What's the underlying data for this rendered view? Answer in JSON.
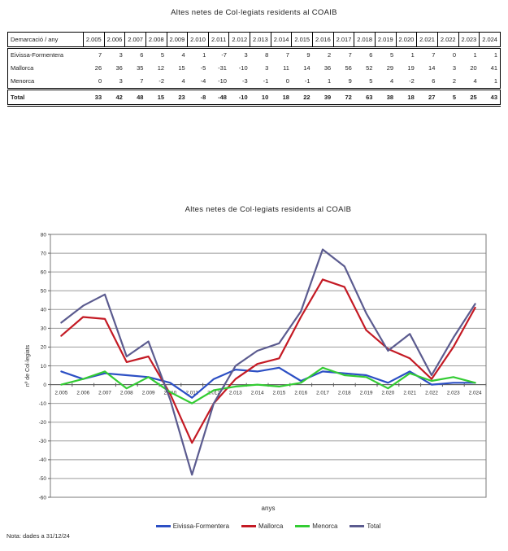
{
  "page": {
    "title": "Altes netes de Col·legiats residents al COAIB",
    "note": "Nota: dades a 31/12/24"
  },
  "table": {
    "header_label": "Demarcació / any",
    "years": [
      "2.005",
      "2.006",
      "2.007",
      "2.008",
      "2.009",
      "2.010",
      "2.011",
      "2.012",
      "2.013",
      "2.014",
      "2.015",
      "2.016",
      "2.017",
      "2.018",
      "2.019",
      "2.020",
      "2.021",
      "2.022",
      "2.023",
      "2.024"
    ],
    "rows": [
      {
        "label": "Eivissa-Formentera",
        "values": [
          7,
          3,
          6,
          5,
          4,
          1,
          -7,
          3,
          8,
          7,
          9,
          2,
          7,
          6,
          5,
          1,
          7,
          0,
          1,
          1
        ]
      },
      {
        "label": "Mallorca",
        "values": [
          26,
          36,
          35,
          12,
          15,
          -5,
          -31,
          -10,
          3,
          11,
          14,
          36,
          56,
          52,
          29,
          19,
          14,
          3,
          20,
          41
        ]
      },
      {
        "label": "Menorca",
        "values": [
          0,
          3,
          7,
          -2,
          4,
          -4,
          -10,
          -3,
          -1,
          0,
          -1,
          1,
          9,
          5,
          4,
          -2,
          6,
          2,
          4,
          1
        ]
      }
    ],
    "total_row": {
      "label": "Total",
      "values": [
        33,
        42,
        48,
        15,
        23,
        -8,
        -48,
        -10,
        10,
        18,
        22,
        39,
        72,
        63,
        38,
        18,
        27,
        5,
        25,
        43
      ]
    }
  },
  "chart_data": {
    "type": "line",
    "title": "Altes netes de Col·legiats residents al COAIB",
    "xlabel": "anys",
    "ylabel": "nº de Col·legiats",
    "categories": [
      "2.005",
      "2.006",
      "2.007",
      "2.008",
      "2.009",
      "2.010",
      "2.011",
      "2.012",
      "2.013",
      "2.014",
      "2.015",
      "2.016",
      "2.017",
      "2.018",
      "2.019",
      "2.020",
      "2.021",
      "2.022",
      "2.023",
      "2.024"
    ],
    "series": [
      {
        "name": "Eivissa-Formentera",
        "color": "#2C4FC4",
        "values": [
          7,
          3,
          6,
          5,
          4,
          1,
          -7,
          3,
          8,
          7,
          9,
          2,
          7,
          6,
          5,
          1,
          7,
          0,
          1,
          1
        ]
      },
      {
        "name": "Mallorca",
        "color": "#C41A24",
        "values": [
          26,
          36,
          35,
          12,
          15,
          -5,
          -31,
          -10,
          3,
          11,
          14,
          36,
          56,
          52,
          29,
          19,
          14,
          3,
          20,
          41
        ]
      },
      {
        "name": "Menorca",
        "color": "#33CC33",
        "values": [
          0,
          3,
          7,
          -2,
          4,
          -4,
          -10,
          -3,
          -1,
          0,
          -1,
          1,
          9,
          5,
          4,
          -2,
          6,
          2,
          4,
          1
        ]
      },
      {
        "name": "Total",
        "color": "#5B5B8F",
        "values": [
          33,
          42,
          48,
          15,
          23,
          -8,
          -48,
          -10,
          10,
          18,
          22,
          39,
          72,
          63,
          38,
          18,
          27,
          5,
          25,
          43
        ]
      }
    ],
    "ylim": [
      -60,
      80
    ],
    "ytick_step": 10,
    "grid": true,
    "legend_position": "bottom",
    "colors": {
      "gridline": "#9B9B9B",
      "axis": "#5F5F5F",
      "plot_border": "#7A7A7A",
      "tick_text": "#2B2B2B"
    }
  }
}
